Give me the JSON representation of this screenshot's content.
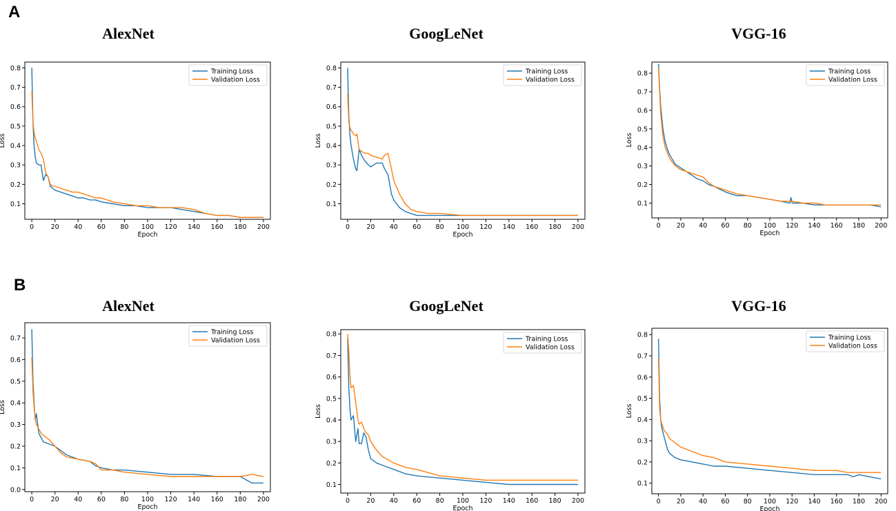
{
  "panels": [
    {
      "label": "A"
    },
    {
      "label": "B"
    }
  ],
  "colors": {
    "training": "#1f77b4",
    "validation": "#ff7f0e",
    "axis": "#000000"
  },
  "chart_data": [
    {
      "type": "line",
      "panel": "A",
      "title": "AlexNet",
      "xlabel": "Epoch",
      "ylabel": "Loss",
      "xlim": [
        -6,
        206
      ],
      "ylim": [
        0.02,
        0.83
      ],
      "xticks": [
        0,
        20,
        40,
        60,
        80,
        100,
        120,
        140,
        160,
        180,
        200
      ],
      "yticks": [
        0.1,
        0.2,
        0.3,
        0.4,
        0.5,
        0.6,
        0.7,
        0.8
      ],
      "series": [
        {
          "name": "Training Loss",
          "x": [
            0,
            1,
            2,
            3,
            4,
            6,
            8,
            10,
            12,
            14,
            16,
            18,
            20,
            25,
            30,
            35,
            40,
            45,
            50,
            55,
            60,
            70,
            80,
            90,
            100,
            110,
            120,
            130,
            140,
            150,
            160,
            170,
            180,
            190,
            200
          ],
          "values": [
            0.8,
            0.52,
            0.4,
            0.34,
            0.31,
            0.3,
            0.3,
            0.22,
            0.25,
            0.24,
            0.19,
            0.18,
            0.17,
            0.16,
            0.15,
            0.14,
            0.13,
            0.13,
            0.12,
            0.12,
            0.11,
            0.1,
            0.09,
            0.09,
            0.08,
            0.08,
            0.08,
            0.07,
            0.06,
            0.05,
            0.04,
            0.04,
            0.03,
            0.03,
            0.03
          ]
        },
        {
          "name": "Validation Loss",
          "x": [
            0,
            1,
            2,
            3,
            4,
            6,
            8,
            10,
            12,
            14,
            16,
            18,
            20,
            25,
            30,
            35,
            40,
            45,
            50,
            55,
            60,
            70,
            80,
            90,
            100,
            110,
            120,
            130,
            140,
            150,
            160,
            170,
            180,
            190,
            200
          ],
          "values": [
            0.68,
            0.52,
            0.47,
            0.44,
            0.42,
            0.38,
            0.36,
            0.33,
            0.26,
            0.24,
            0.2,
            0.19,
            0.19,
            0.18,
            0.17,
            0.16,
            0.16,
            0.15,
            0.14,
            0.13,
            0.13,
            0.11,
            0.1,
            0.09,
            0.09,
            0.08,
            0.08,
            0.08,
            0.07,
            0.05,
            0.04,
            0.04,
            0.03,
            0.03,
            0.03
          ]
        }
      ]
    },
    {
      "type": "line",
      "panel": "A",
      "title": "GoogLeNet",
      "xlabel": "Epoch",
      "ylabel": "Loss",
      "xlim": [
        -6,
        206
      ],
      "ylim": [
        0.02,
        0.83
      ],
      "xticks": [
        0,
        20,
        40,
        60,
        80,
        100,
        120,
        140,
        160,
        180,
        200
      ],
      "yticks": [
        0.1,
        0.2,
        0.3,
        0.4,
        0.5,
        0.6,
        0.7,
        0.8
      ],
      "series": [
        {
          "name": "Training Loss",
          "x": [
            0,
            1,
            2,
            3,
            5,
            7,
            8,
            10,
            12,
            15,
            18,
            20,
            25,
            30,
            32,
            35,
            38,
            40,
            45,
            50,
            55,
            60,
            70,
            80,
            100,
            120,
            140,
            160,
            180,
            200
          ],
          "values": [
            0.8,
            0.55,
            0.45,
            0.4,
            0.33,
            0.28,
            0.27,
            0.38,
            0.35,
            0.32,
            0.3,
            0.29,
            0.31,
            0.31,
            0.28,
            0.25,
            0.15,
            0.12,
            0.08,
            0.06,
            0.05,
            0.04,
            0.04,
            0.04,
            0.04,
            0.04,
            0.04,
            0.04,
            0.04,
            0.04
          ]
        },
        {
          "name": "Validation Loss",
          "x": [
            0,
            1,
            2,
            3,
            5,
            7,
            8,
            10,
            12,
            15,
            18,
            20,
            25,
            30,
            32,
            35,
            38,
            40,
            45,
            50,
            55,
            60,
            70,
            80,
            100,
            120,
            140,
            160,
            180,
            200
          ],
          "values": [
            0.67,
            0.52,
            0.49,
            0.48,
            0.46,
            0.45,
            0.46,
            0.38,
            0.37,
            0.36,
            0.36,
            0.35,
            0.34,
            0.33,
            0.35,
            0.36,
            0.28,
            0.22,
            0.15,
            0.1,
            0.07,
            0.06,
            0.05,
            0.05,
            0.04,
            0.04,
            0.04,
            0.04,
            0.04,
            0.04
          ]
        }
      ]
    },
    {
      "type": "line",
      "panel": "A",
      "title": "VGG-16",
      "xlabel": "Epoch",
      "ylabel": "Loss",
      "xlim": [
        -6,
        206
      ],
      "ylim": [
        0.02,
        0.86
      ],
      "xticks": [
        0,
        20,
        40,
        60,
        80,
        100,
        120,
        140,
        160,
        180,
        200
      ],
      "yticks": [
        0.1,
        0.2,
        0.3,
        0.4,
        0.5,
        0.6,
        0.7,
        0.8
      ],
      "series": [
        {
          "name": "Training Loss",
          "x": [
            0,
            1,
            2,
            4,
            6,
            8,
            10,
            15,
            20,
            25,
            30,
            35,
            40,
            45,
            50,
            60,
            70,
            80,
            90,
            100,
            110,
            118,
            119,
            120,
            130,
            140,
            150,
            160,
            170,
            180,
            190,
            200
          ],
          "values": [
            0.85,
            0.72,
            0.62,
            0.5,
            0.43,
            0.39,
            0.36,
            0.31,
            0.29,
            0.27,
            0.25,
            0.23,
            0.22,
            0.2,
            0.19,
            0.16,
            0.14,
            0.14,
            0.13,
            0.12,
            0.11,
            0.1,
            0.13,
            0.1,
            0.1,
            0.09,
            0.09,
            0.09,
            0.09,
            0.09,
            0.09,
            0.08
          ]
        },
        {
          "name": "Validation Loss",
          "x": [
            0,
            1,
            2,
            4,
            6,
            8,
            10,
            15,
            20,
            25,
            30,
            35,
            40,
            45,
            50,
            60,
            70,
            80,
            90,
            100,
            110,
            118,
            119,
            120,
            130,
            140,
            150,
            160,
            170,
            180,
            190,
            200
          ],
          "values": [
            0.83,
            0.7,
            0.58,
            0.46,
            0.4,
            0.37,
            0.34,
            0.3,
            0.28,
            0.27,
            0.26,
            0.25,
            0.24,
            0.21,
            0.19,
            0.17,
            0.15,
            0.14,
            0.13,
            0.12,
            0.11,
            0.11,
            0.11,
            0.11,
            0.1,
            0.1,
            0.09,
            0.09,
            0.09,
            0.09,
            0.09,
            0.09
          ]
        }
      ]
    },
    {
      "type": "line",
      "panel": "B",
      "title": "AlexNet",
      "xlabel": "Epoch",
      "ylabel": "Loss",
      "xlim": [
        -6,
        206
      ],
      "ylim": [
        -0.01,
        0.77
      ],
      "xticks": [
        0,
        20,
        40,
        60,
        80,
        100,
        120,
        140,
        160,
        180,
        200
      ],
      "yticks": [
        0.0,
        0.1,
        0.2,
        0.3,
        0.4,
        0.5,
        0.6,
        0.7
      ],
      "series": [
        {
          "name": "Training Loss",
          "x": [
            0,
            1,
            2,
            3,
            4,
            6,
            8,
            10,
            15,
            20,
            25,
            30,
            40,
            50,
            55,
            60,
            70,
            80,
            100,
            120,
            140,
            160,
            180,
            190,
            200
          ],
          "values": [
            0.74,
            0.5,
            0.4,
            0.32,
            0.35,
            0.26,
            0.24,
            0.22,
            0.21,
            0.2,
            0.18,
            0.16,
            0.14,
            0.13,
            0.11,
            0.1,
            0.09,
            0.09,
            0.08,
            0.07,
            0.07,
            0.06,
            0.06,
            0.03,
            0.03
          ]
        },
        {
          "name": "Validation Loss",
          "x": [
            0,
            1,
            2,
            3,
            4,
            6,
            8,
            10,
            15,
            20,
            25,
            30,
            40,
            50,
            55,
            60,
            70,
            80,
            100,
            120,
            140,
            160,
            180,
            190,
            200
          ],
          "values": [
            0.61,
            0.45,
            0.38,
            0.33,
            0.3,
            0.28,
            0.26,
            0.25,
            0.23,
            0.2,
            0.17,
            0.15,
            0.14,
            0.13,
            0.12,
            0.09,
            0.09,
            0.08,
            0.07,
            0.06,
            0.06,
            0.06,
            0.06,
            0.07,
            0.06
          ]
        }
      ]
    },
    {
      "type": "line",
      "panel": "B",
      "title": "GoogLeNet",
      "xlabel": "Epoch",
      "ylabel": "Loss",
      "xlim": [
        -6,
        206
      ],
      "ylim": [
        0.06,
        0.82
      ],
      "xticks": [
        0,
        20,
        40,
        60,
        80,
        100,
        120,
        140,
        160,
        180,
        200
      ],
      "yticks": [
        0.1,
        0.2,
        0.3,
        0.4,
        0.5,
        0.6,
        0.7,
        0.8
      ],
      "series": [
        {
          "name": "Training Loss",
          "x": [
            0,
            1,
            2,
            3,
            5,
            7,
            9,
            10,
            12,
            14,
            16,
            18,
            20,
            25,
            30,
            40,
            50,
            60,
            80,
            100,
            120,
            140,
            160,
            180,
            200
          ],
          "values": [
            0.78,
            0.55,
            0.45,
            0.4,
            0.42,
            0.3,
            0.36,
            0.29,
            0.29,
            0.34,
            0.32,
            0.26,
            0.22,
            0.2,
            0.19,
            0.17,
            0.15,
            0.14,
            0.13,
            0.12,
            0.11,
            0.1,
            0.1,
            0.1,
            0.1
          ]
        },
        {
          "name": "Validation Loss",
          "x": [
            0,
            1,
            2,
            3,
            5,
            7,
            9,
            10,
            12,
            14,
            16,
            18,
            20,
            25,
            30,
            40,
            50,
            60,
            80,
            100,
            120,
            140,
            160,
            180,
            200
          ],
          "values": [
            0.8,
            0.72,
            0.6,
            0.55,
            0.56,
            0.48,
            0.4,
            0.38,
            0.39,
            0.36,
            0.34,
            0.33,
            0.3,
            0.26,
            0.23,
            0.2,
            0.18,
            0.17,
            0.14,
            0.13,
            0.12,
            0.12,
            0.12,
            0.12,
            0.12
          ]
        }
      ]
    },
    {
      "type": "line",
      "panel": "B",
      "title": "VGG-16",
      "xlabel": "Epoch",
      "ylabel": "Loss",
      "xlim": [
        -6,
        206
      ],
      "ylim": [
        0.05,
        0.83
      ],
      "xticks": [
        0,
        20,
        40,
        60,
        80,
        100,
        120,
        140,
        160,
        180,
        200
      ],
      "yticks": [
        0.1,
        0.2,
        0.3,
        0.4,
        0.5,
        0.6,
        0.7,
        0.8
      ],
      "series": [
        {
          "name": "Training Loss",
          "x": [
            0,
            1,
            2,
            3,
            5,
            8,
            10,
            15,
            20,
            30,
            40,
            50,
            60,
            80,
            100,
            120,
            140,
            160,
            170,
            175,
            180,
            190,
            200
          ],
          "values": [
            0.78,
            0.5,
            0.4,
            0.36,
            0.32,
            0.26,
            0.24,
            0.22,
            0.21,
            0.2,
            0.19,
            0.18,
            0.18,
            0.17,
            0.16,
            0.15,
            0.14,
            0.14,
            0.14,
            0.13,
            0.14,
            0.13,
            0.12
          ]
        },
        {
          "name": "Validation Loss",
          "x": [
            0,
            1,
            2,
            3,
            5,
            8,
            10,
            15,
            20,
            30,
            40,
            50,
            60,
            80,
            100,
            120,
            140,
            160,
            170,
            175,
            180,
            190,
            200
          ],
          "values": [
            0.69,
            0.45,
            0.4,
            0.38,
            0.35,
            0.33,
            0.31,
            0.29,
            0.27,
            0.25,
            0.23,
            0.22,
            0.2,
            0.19,
            0.18,
            0.17,
            0.16,
            0.16,
            0.15,
            0.15,
            0.15,
            0.15,
            0.15
          ]
        }
      ]
    }
  ]
}
